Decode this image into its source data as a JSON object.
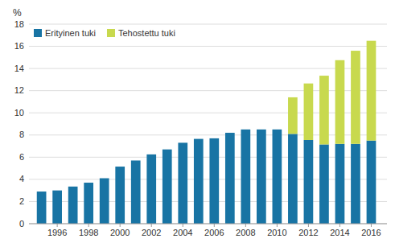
{
  "chart_data": {
    "type": "bar",
    "stacked": true,
    "ylabel": "%",
    "x": [
      1995,
      1996,
      1997,
      1998,
      1999,
      2000,
      2001,
      2002,
      2003,
      2004,
      2005,
      2006,
      2007,
      2008,
      2009,
      2010,
      2011,
      2012,
      2013,
      2014,
      2015,
      2016
    ],
    "series": [
      {
        "name": "Erityinen tuki",
        "color": "#1874a4",
        "values": [
          2.9,
          3.0,
          3.35,
          3.7,
          4.1,
          5.15,
          5.7,
          6.25,
          6.7,
          7.3,
          7.65,
          7.7,
          8.2,
          8.5,
          8.5,
          8.5,
          8.1,
          7.55,
          7.15,
          7.2,
          7.2,
          7.5
        ]
      },
      {
        "name": "Tehostettu tuki",
        "color": "#c8d94e",
        "values": [
          0,
          0,
          0,
          0,
          0,
          0,
          0,
          0,
          0,
          0,
          0,
          0,
          0,
          0,
          0,
          0,
          3.3,
          5.1,
          6.2,
          7.55,
          8.4,
          9.0
        ]
      }
    ],
    "xlim": [
      1994.2,
      2017.0
    ],
    "xticks": [
      1996,
      1998,
      2000,
      2002,
      2004,
      2006,
      2008,
      2010,
      2012,
      2014,
      2016
    ],
    "ylim": [
      0,
      18
    ],
    "yticks": [
      0,
      2,
      4,
      6,
      8,
      10,
      12,
      14,
      16,
      18
    ],
    "grid": true,
    "legend": "upper left"
  }
}
